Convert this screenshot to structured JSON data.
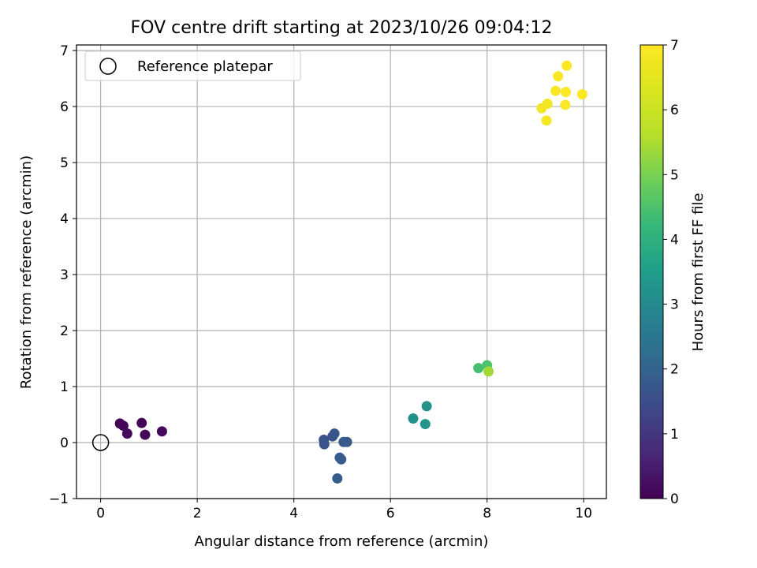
{
  "chart_data": {
    "type": "scatter",
    "title": "FOV centre drift starting at 2023/10/26 09:04:12",
    "xlabel": "Angular distance from reference (arcmin)",
    "ylabel": "Rotation from reference (arcmin)",
    "xlim": [
      -0.5,
      10.47
    ],
    "ylim": [
      -1,
      7.1
    ],
    "xticks": [
      0,
      2,
      4,
      6,
      8,
      10
    ],
    "yticks": [
      -1,
      0,
      1,
      2,
      3,
      4,
      5,
      6,
      7
    ],
    "grid": true,
    "legend": {
      "placement": "upper-left",
      "entries": [
        "Reference platepar"
      ]
    },
    "reference_point": {
      "x": 0,
      "y": 0,
      "label": "Reference platepar"
    },
    "colorbar": {
      "label": "Hours from first FF file",
      "min": 0,
      "max": 7,
      "ticks": [
        0,
        1,
        2,
        3,
        4,
        5,
        6,
        7
      ],
      "colormap": "viridis"
    },
    "points": [
      {
        "x": 0.4,
        "y": 0.34,
        "hours": 0.05
      },
      {
        "x": 0.47,
        "y": 0.3,
        "hours": 0.1
      },
      {
        "x": 0.55,
        "y": 0.16,
        "hours": 0.15
      },
      {
        "x": 0.85,
        "y": 0.35,
        "hours": 0.05
      },
      {
        "x": 0.92,
        "y": 0.14,
        "hours": 0.1
      },
      {
        "x": 1.27,
        "y": 0.2,
        "hours": 0.15
      },
      {
        "x": 4.62,
        "y": 0.05,
        "hours": 1.65
      },
      {
        "x": 4.63,
        "y": -0.03,
        "hours": 1.7
      },
      {
        "x": 4.8,
        "y": 0.11,
        "hours": 1.65
      },
      {
        "x": 4.84,
        "y": 0.16,
        "hours": 1.7
      },
      {
        "x": 5.03,
        "y": 0.01,
        "hours": 1.75
      },
      {
        "x": 5.1,
        "y": 0.01,
        "hours": 1.75
      },
      {
        "x": 4.95,
        "y": -0.27,
        "hours": 1.8
      },
      {
        "x": 4.98,
        "y": -0.3,
        "hours": 1.8
      },
      {
        "x": 4.9,
        "y": -0.64,
        "hours": 1.85
      },
      {
        "x": 6.47,
        "y": 0.43,
        "hours": 3.15
      },
      {
        "x": 6.75,
        "y": 0.65,
        "hours": 3.2
      },
      {
        "x": 6.72,
        "y": 0.33,
        "hours": 3.25
      },
      {
        "x": 7.82,
        "y": 1.33,
        "hours": 4.4
      },
      {
        "x": 8.0,
        "y": 1.38,
        "hours": 4.5
      },
      {
        "x": 8.03,
        "y": 1.27,
        "hours": 5.4
      },
      {
        "x": 9.13,
        "y": 5.97,
        "hours": 6.8
      },
      {
        "x": 9.25,
        "y": 6.05,
        "hours": 6.8
      },
      {
        "x": 9.23,
        "y": 5.75,
        "hours": 6.85
      },
      {
        "x": 9.42,
        "y": 6.28,
        "hours": 6.9
      },
      {
        "x": 9.47,
        "y": 6.54,
        "hours": 6.9
      },
      {
        "x": 9.65,
        "y": 6.73,
        "hours": 6.95
      },
      {
        "x": 9.63,
        "y": 6.26,
        "hours": 6.95
      },
      {
        "x": 9.62,
        "y": 6.03,
        "hours": 6.95
      },
      {
        "x": 9.97,
        "y": 6.22,
        "hours": 7.0
      }
    ]
  }
}
